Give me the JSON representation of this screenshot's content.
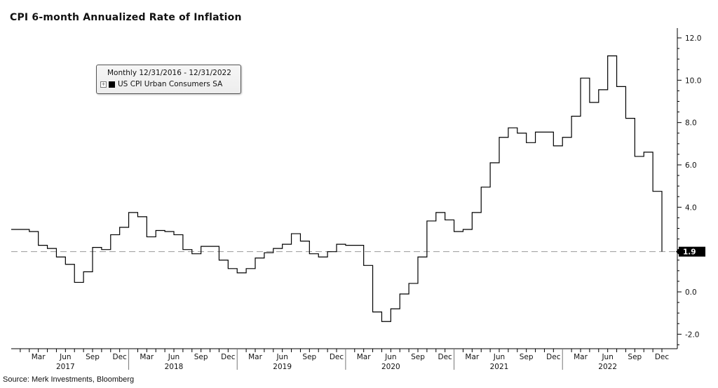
{
  "chart_data": {
    "type": "line",
    "title": "CPI 6-month Annualized Rate of Inflation",
    "legend": {
      "header": "Monthly 12/31/2016 - 12/31/2022",
      "placement": "top-left",
      "series_label": "US CPI Urban Consumers SA",
      "expand_glyph": "+"
    },
    "source": "Source: Merk Investments, Bloomberg",
    "ylim": [
      -2.6,
      13.0
    ],
    "y_ticks": [
      12.0,
      10.0,
      8.0,
      6.0,
      4.0,
      2.0,
      0.0,
      -2.0
    ],
    "y_tick_labels": [
      "12.0",
      "10.0",
      "8.0",
      "6.0",
      "4.0",
      "",
      "0.0",
      "-2.0"
    ],
    "reference_line": {
      "value": 1.9,
      "label": "1.9",
      "style": "dashed"
    },
    "x_month_labels": [
      "Mar",
      "Jun",
      "Sep",
      "Dec",
      "Mar",
      "Jun",
      "Sep",
      "Dec",
      "Mar",
      "Jun",
      "Sep",
      "Dec",
      "Mar",
      "Jun",
      "Sep",
      "Dec",
      "Mar",
      "Jun",
      "Sep",
      "Dec",
      "Mar",
      "Jun",
      "Sep",
      "Dec"
    ],
    "x_year_labels": [
      "2017",
      "2018",
      "2019",
      "2020",
      "2021",
      "2022"
    ],
    "start": "2016-12",
    "end": "2022-12",
    "series": [
      {
        "name": "US CPI Urban Consumers SA",
        "color": "#000000",
        "step": true,
        "x": [
          "2017-01",
          "2017-02",
          "2017-03",
          "2017-04",
          "2017-05",
          "2017-06",
          "2017-07",
          "2017-08",
          "2017-09",
          "2017-10",
          "2017-11",
          "2017-12",
          "2018-01",
          "2018-02",
          "2018-03",
          "2018-04",
          "2018-05",
          "2018-06",
          "2018-07",
          "2018-08",
          "2018-09",
          "2018-10",
          "2018-11",
          "2018-12",
          "2019-01",
          "2019-02",
          "2019-03",
          "2019-04",
          "2019-05",
          "2019-06",
          "2019-07",
          "2019-08",
          "2019-09",
          "2019-10",
          "2019-11",
          "2019-12",
          "2020-01",
          "2020-02",
          "2020-03",
          "2020-04",
          "2020-05",
          "2020-06",
          "2020-07",
          "2020-08",
          "2020-09",
          "2020-10",
          "2020-11",
          "2020-12",
          "2021-01",
          "2021-02",
          "2021-03",
          "2021-04",
          "2021-05",
          "2021-06",
          "2021-07",
          "2021-08",
          "2021-09",
          "2021-10",
          "2021-11",
          "2021-12",
          "2022-01",
          "2022-02",
          "2022-03",
          "2022-04",
          "2022-05",
          "2022-06",
          "2022-07",
          "2022-08",
          "2022-09",
          "2022-10",
          "2022-11",
          "2022-12"
        ],
        "values": [
          2.95,
          2.85,
          2.2,
          2.05,
          1.65,
          1.3,
          0.45,
          0.95,
          2.1,
          2.0,
          2.7,
          3.05,
          3.75,
          3.55,
          2.6,
          2.9,
          2.85,
          2.7,
          2.0,
          1.8,
          2.15,
          2.15,
          1.5,
          1.1,
          0.9,
          1.1,
          1.6,
          1.85,
          2.05,
          2.25,
          2.75,
          2.4,
          1.8,
          1.65,
          1.9,
          2.25,
          2.2,
          2.2,
          1.25,
          -0.95,
          -1.4,
          -0.8,
          -0.1,
          0.4,
          1.65,
          3.35,
          3.75,
          3.4,
          2.85,
          2.95,
          3.75,
          4.95,
          6.1,
          7.3,
          7.75,
          7.5,
          7.05,
          7.55,
          7.55,
          6.9,
          7.3,
          8.3,
          10.1,
          8.95,
          9.55,
          11.15,
          9.7,
          8.2,
          6.4,
          6.6,
          4.75,
          1.9
        ]
      }
    ]
  }
}
